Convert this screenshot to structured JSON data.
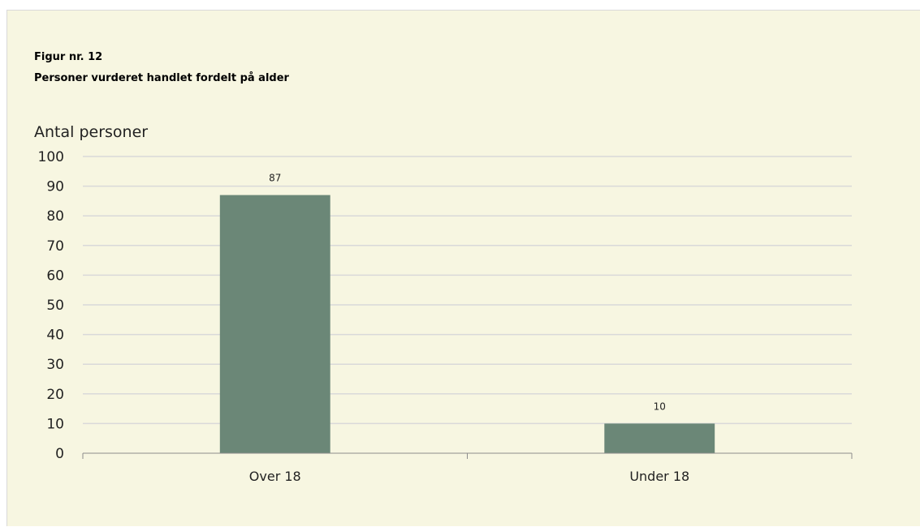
{
  "figure": {
    "number": "Figur nr. 12",
    "title": "Personer vurderet handlet fordelt på alder"
  },
  "colors": {
    "background": "#f7f6e1",
    "bar": "#6b8777",
    "gridline": "#d9d9d9",
    "axis": "#8c8c8c"
  },
  "chart_data": {
    "type": "bar",
    "title": "Personer vurderet handlet fordelt på alder",
    "ylabel": "Antal personer",
    "xlabel": "",
    "categories": [
      "Over 18",
      "Under 18"
    ],
    "values": [
      87,
      10
    ],
    "data_labels": [
      "87",
      "10"
    ],
    "ylim": [
      0,
      100
    ],
    "yticks": [
      0,
      10,
      20,
      30,
      40,
      50,
      60,
      70,
      80,
      90,
      100
    ],
    "grid": true,
    "legend": "none"
  }
}
